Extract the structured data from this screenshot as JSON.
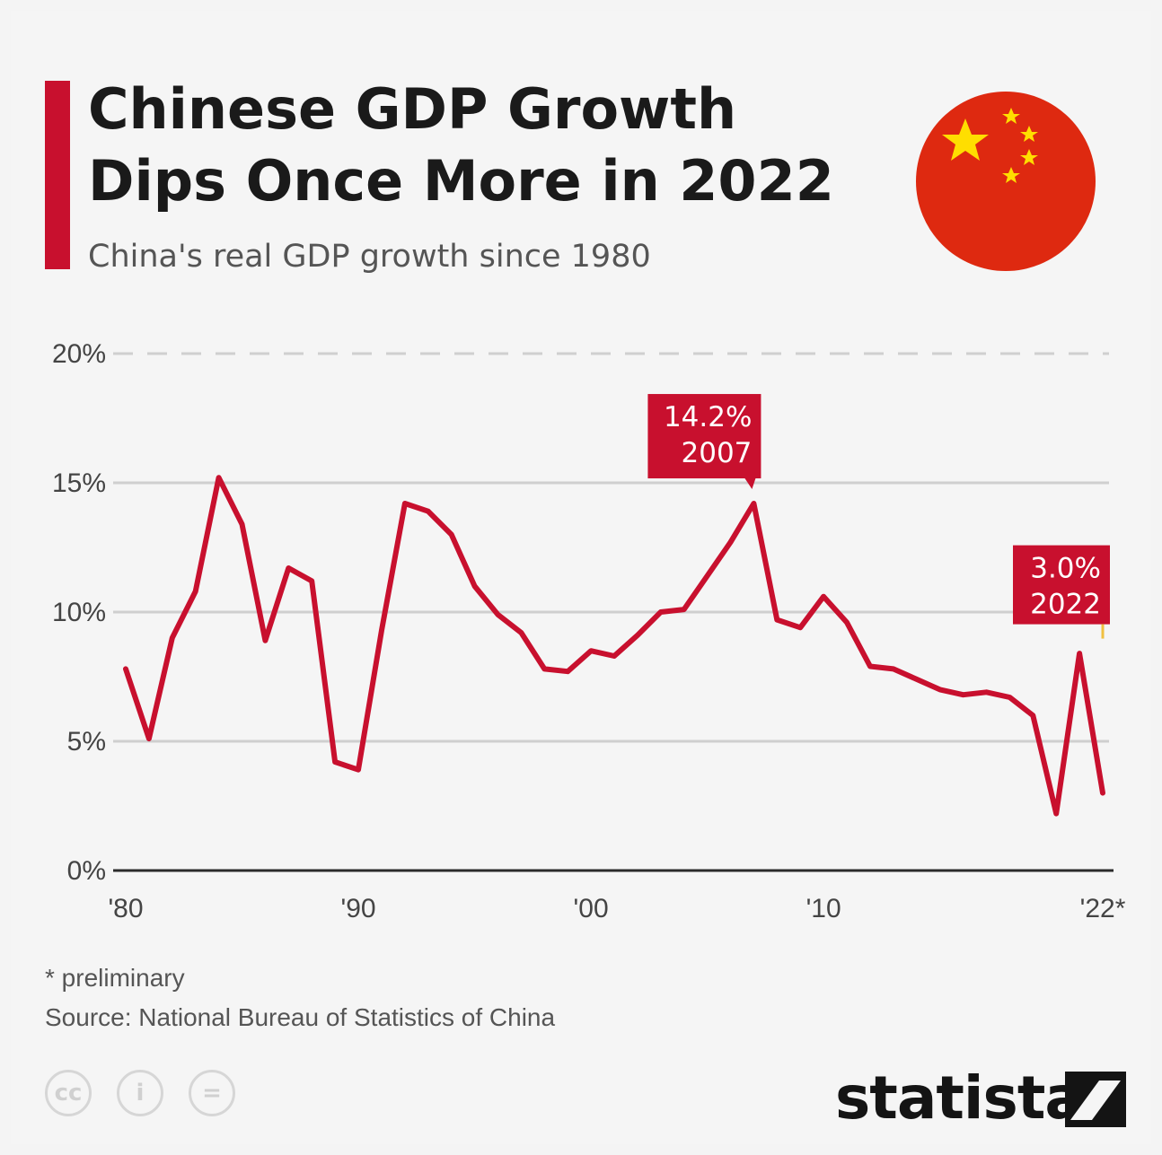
{
  "header": {
    "title_line1": "Chinese GDP Growth",
    "title_line2": "Dips Once More in 2022",
    "subtitle": "China's real GDP growth since 1980"
  },
  "colors": {
    "accent": "#c8102e",
    "line": "#c8102e",
    "annotation_bg": "#c8102e",
    "grid": "#cfcfcf",
    "flag_red": "#de2910",
    "flag_star": "#ffde00"
  },
  "icons": [
    "china-flag-icon",
    "cc-license-icon",
    "info-icon",
    "equals-icon",
    "statista-logo-icon"
  ],
  "chart_data": {
    "type": "line",
    "title": "Chinese GDP Growth Dips Once More in 2022",
    "subtitle": "China's real GDP growth since 1980",
    "xlabel": "",
    "ylabel": "",
    "x": [
      1980,
      1981,
      1982,
      1983,
      1984,
      1985,
      1986,
      1987,
      1988,
      1989,
      1990,
      1991,
      1992,
      1993,
      1994,
      1995,
      1996,
      1997,
      1998,
      1999,
      2000,
      2001,
      2002,
      2003,
      2004,
      2005,
      2006,
      2007,
      2008,
      2009,
      2010,
      2011,
      2012,
      2013,
      2014,
      2015,
      2016,
      2017,
      2018,
      2019,
      2020,
      2021,
      2022
    ],
    "series": [
      {
        "values": [
          7.8,
          5.1,
          9.0,
          10.8,
          15.2,
          13.4,
          8.9,
          11.7,
          11.2,
          4.2,
          3.9,
          9.3,
          14.2,
          13.9,
          13.0,
          11.0,
          9.9,
          9.2,
          7.8,
          7.7,
          8.5,
          8.3,
          9.1,
          10.0,
          10.1,
          11.4,
          12.7,
          14.2,
          9.7,
          9.4,
          10.6,
          9.6,
          7.9,
          7.8,
          7.4,
          7.0,
          6.8,
          6.9,
          6.7,
          6.0,
          2.2,
          8.4,
          3.0
        ]
      }
    ],
    "x_ticks": [
      "'80",
      "'90",
      "'00",
      "'10",
      "'22*"
    ],
    "x_tick_years": [
      1980,
      1990,
      2000,
      2010,
      2022
    ],
    "y_ticks": [
      "0%",
      "5%",
      "10%",
      "15%",
      "20%"
    ],
    "y_tick_values": [
      0,
      5,
      10,
      15,
      20
    ],
    "ylim": [
      0,
      20
    ],
    "xlim": [
      1980,
      2022
    ],
    "grid": true,
    "annotations": [
      {
        "year": 2007,
        "value": 14.2,
        "line1": "14.2%",
        "line2": "2007"
      },
      {
        "year": 2022,
        "value": 3.0,
        "line1": "3.0%",
        "line2": "2022"
      }
    ]
  },
  "footer": {
    "footnote": "* preliminary",
    "source": "Source: National Bureau of Statistics of China",
    "license_icons": [
      {
        "icon": "cc-license-icon",
        "glyph": "cc"
      },
      {
        "icon": "info-icon",
        "glyph": "i"
      },
      {
        "icon": "equals-icon",
        "glyph": "="
      }
    ],
    "brand": "statista"
  }
}
